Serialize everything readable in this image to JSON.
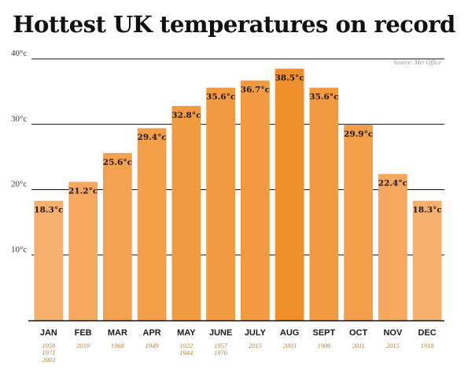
{
  "title": "Hottest UK temperatures on record",
  "source": "Source: Met Office",
  "chart_data": {
    "type": "bar",
    "title": "Hottest UK temperatures on record",
    "ylim": [
      0,
      40
    ],
    "yticks": [
      10,
      20,
      30,
      40
    ],
    "ytick_labels": [
      "10°c",
      "20°c",
      "30°c",
      "40°c"
    ],
    "categories": [
      "JAN",
      "FEB",
      "MAR",
      "APR",
      "MAY",
      "JUNE",
      "JULY",
      "AUG",
      "SEPT",
      "OCT",
      "NOV",
      "DEC"
    ],
    "values": [
      18.3,
      21.2,
      25.6,
      29.4,
      32.8,
      35.6,
      36.7,
      38.5,
      35.6,
      29.9,
      22.4,
      18.3
    ],
    "value_labels": [
      "18.3°c",
      "21.2°c",
      "25.6°c",
      "29.4°c",
      "32.8°c",
      "35.6°c",
      "36.7°c",
      "38.5°c",
      "35.6°c",
      "29.9°c",
      "22.4°c",
      "18.3°c"
    ],
    "years": [
      [
        "1958",
        "1971",
        "2003"
      ],
      [
        "2019"
      ],
      [
        "1968"
      ],
      [
        "1949"
      ],
      [
        "1922",
        "1944"
      ],
      [
        "1957",
        "1976"
      ],
      [
        "2015"
      ],
      [
        "2003"
      ],
      [
        "1906"
      ],
      [
        "2011"
      ],
      [
        "2015"
      ],
      [
        "1918"
      ]
    ],
    "grid": true,
    "bar_colors": [
      "#f6b06d",
      "#f5a85e",
      "#f4a24f",
      "#f39e48",
      "#f29a40",
      "#f29a40",
      "#f29a40",
      "#ef8f2c",
      "#f29a40",
      "#f39e48",
      "#f5a85e",
      "#f6b06d"
    ],
    "year_color": "#b8833d",
    "grid_color": "#111111"
  }
}
